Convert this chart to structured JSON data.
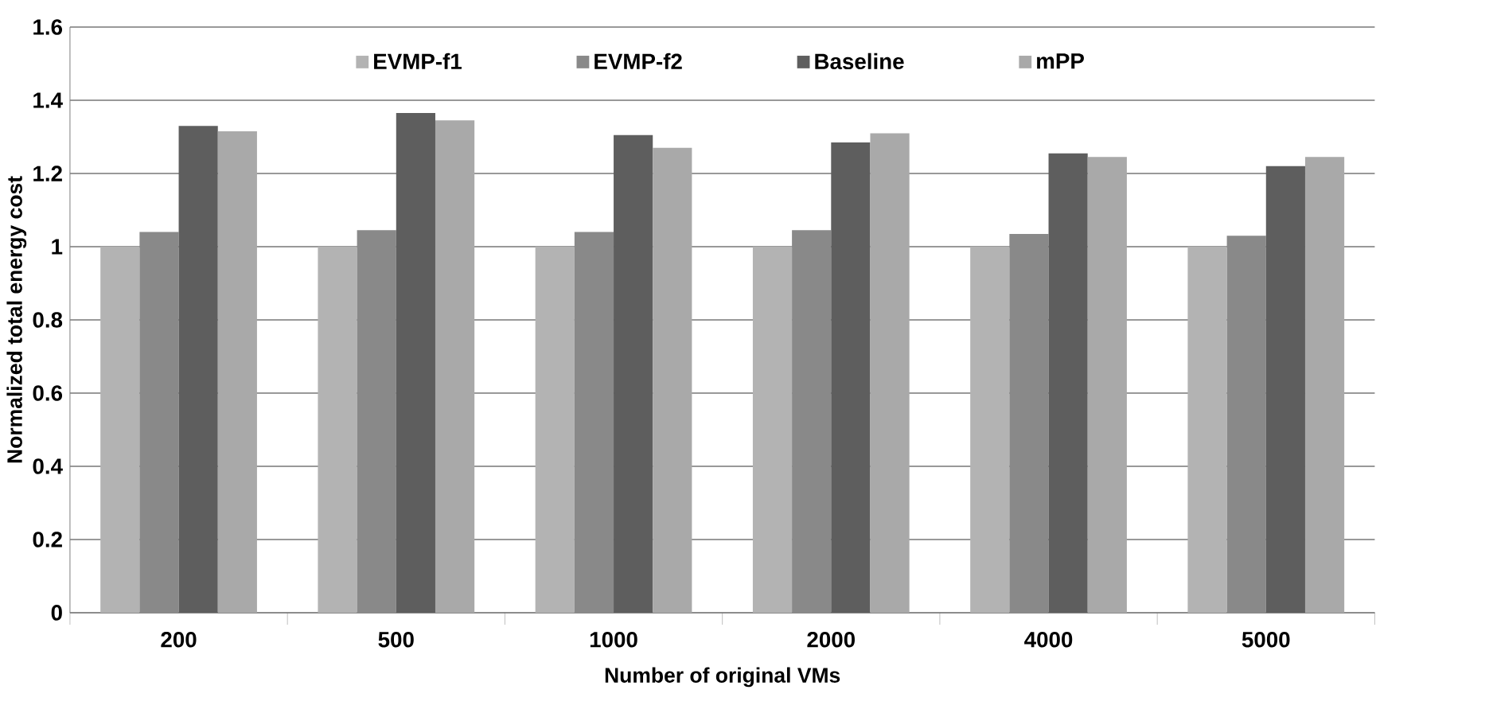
{
  "chart_data": {
    "type": "bar",
    "xlabel": "Number of original VMs",
    "ylabel": "Normalized total energy cost",
    "categories": [
      "200",
      "500",
      "1000",
      "2000",
      "4000",
      "5000"
    ],
    "series": [
      {
        "name": "EVMP-f1",
        "color": "#b3b3b3",
        "values": [
          1.0,
          1.0,
          1.0,
          1.0,
          1.0,
          1.0
        ]
      },
      {
        "name": "EVMP-f2",
        "color": "#898989",
        "values": [
          1.04,
          1.045,
          1.04,
          1.045,
          1.035,
          1.03
        ]
      },
      {
        "name": "Baseline",
        "color": "#5e5e5e",
        "values": [
          1.33,
          1.365,
          1.305,
          1.285,
          1.255,
          1.22
        ]
      },
      {
        "name": "mPP",
        "color": "#a9a9a9",
        "values": [
          1.315,
          1.345,
          1.27,
          1.31,
          1.245,
          1.245
        ]
      }
    ],
    "ylim": [
      0,
      1.6
    ],
    "yticks": [
      0,
      0.2,
      0.4,
      0.6,
      0.8,
      1,
      1.2,
      1.4,
      1.6
    ],
    "grid": "y",
    "legend": "top"
  }
}
